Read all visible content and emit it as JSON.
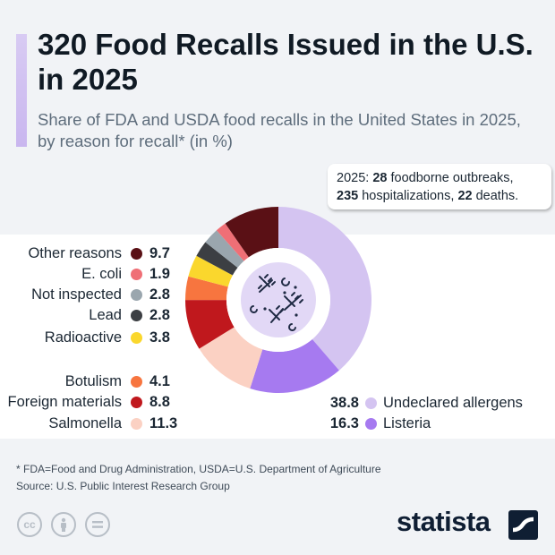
{
  "title": "320 Food Recalls Issued in the U.S. in 2025",
  "subtitle": "Share of FDA and USDA food recalls in the United States in 2025, by reason for recall* (in %)",
  "callout": {
    "prefix": "2025: ",
    "outbreaks": "28",
    "outbreaks_text": " foodborne outbreaks,",
    "hospitalizations": "235",
    "hospitalizations_text": " hospitalizations, ",
    "deaths": "22",
    "deaths_text": " deaths."
  },
  "footnote": "* FDA=Food and Drug Administration, USDA=U.S. Department of Agriculture",
  "source": "Source: U.S. Public Interest Research Group",
  "brand": "statista",
  "license_icons": [
    "cc-icon",
    "attribution-icon",
    "no-derivatives-icon"
  ],
  "chart_data": {
    "type": "pie",
    "variant": "donut",
    "unit": "%",
    "slices": [
      {
        "label": "Undeclared allergens",
        "value": 38.8,
        "display": "38.8",
        "color": "#d4c4f1"
      },
      {
        "label": "Listeria",
        "value": 16.3,
        "display": "16.3",
        "color": "#a67af0"
      },
      {
        "label": "Salmonella",
        "value": 11.3,
        "display": "11.3",
        "color": "#fbd1c3"
      },
      {
        "label": "Foreign materials",
        "value": 8.8,
        "display": "8.8",
        "color": "#c0181d"
      },
      {
        "label": "Botulism",
        "value": 4.1,
        "display": "4.1",
        "color": "#f7753f"
      },
      {
        "label": "Radioactive",
        "value": 3.8,
        "display": "3.8",
        "color": "#fad72d"
      },
      {
        "label": "Lead",
        "value": 2.8,
        "display": "2.8",
        "color": "#3c3f43"
      },
      {
        "label": "Not inspected",
        "value": 2.8,
        "display": "2.8",
        "color": "#9aa6ae"
      },
      {
        "label": "E. coli",
        "value": 1.9,
        "display": "1.9",
        "color": "#ef6f76"
      },
      {
        "label": "Other reasons",
        "value": 9.7,
        "display": "9.7",
        "color": "#5a1015"
      }
    ]
  }
}
